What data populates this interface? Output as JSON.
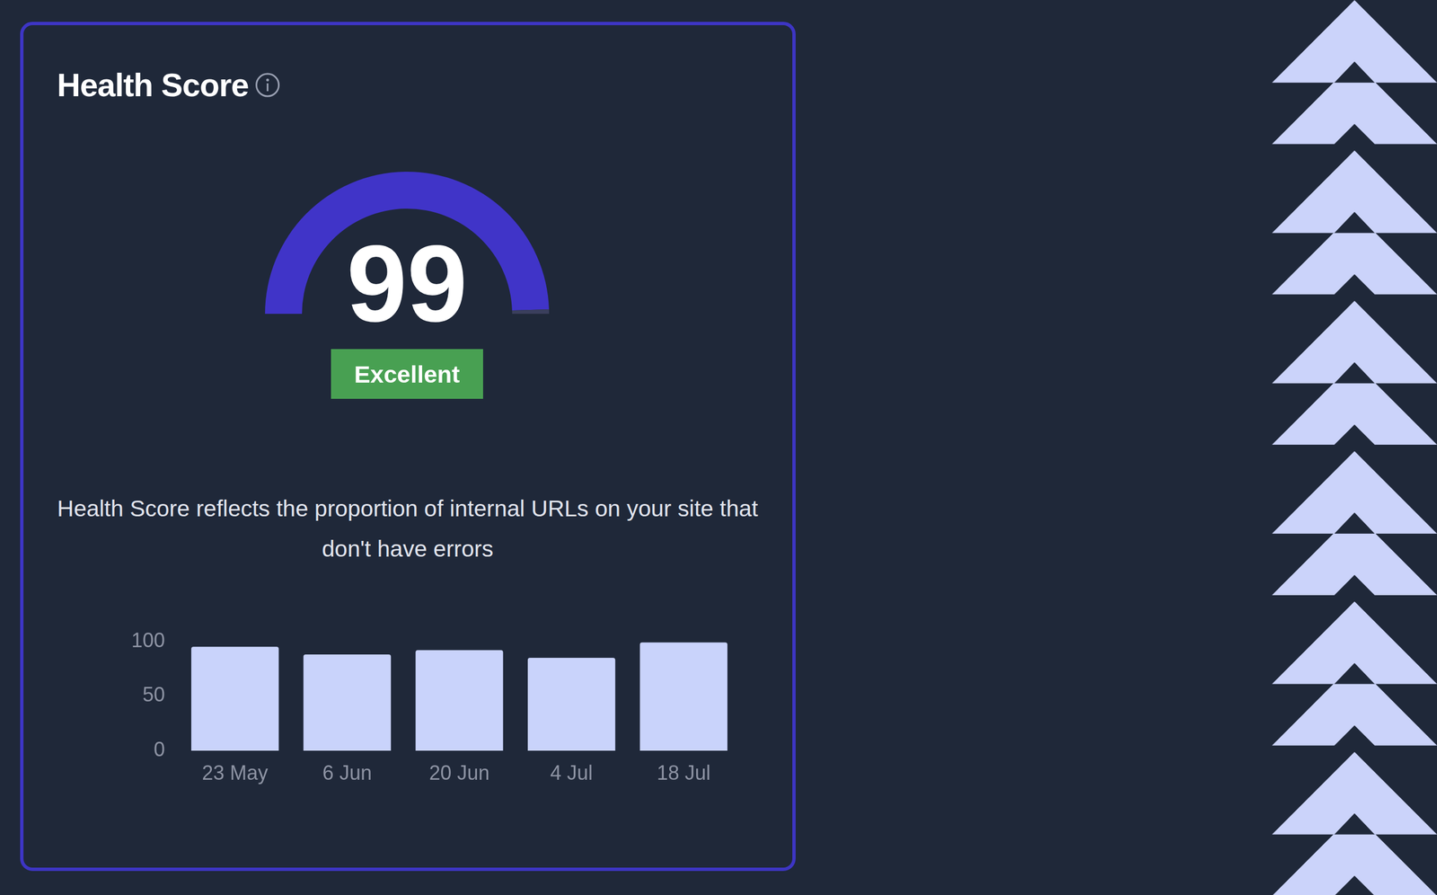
{
  "header": {
    "title": "Health Score"
  },
  "chart_data": [
    {
      "type": "gauge",
      "value": 99,
      "ylim": [
        0,
        100
      ],
      "annotations": [
        "Excellent"
      ],
      "color": "#4034c8"
    },
    {
      "type": "bar",
      "categories": [
        "23 May",
        "6 Jun",
        "20 Jun",
        "4 Jul",
        "18 Jul"
      ],
      "values": [
        95,
        88,
        92,
        85,
        99
      ],
      "color": "#c9d3fb",
      "ylim": [
        0,
        100
      ],
      "yticks": [
        0,
        50,
        100
      ],
      "grid": false
    }
  ],
  "description": "Health Score reflects the proportion of internal URLs on your site that don't have errors"
}
